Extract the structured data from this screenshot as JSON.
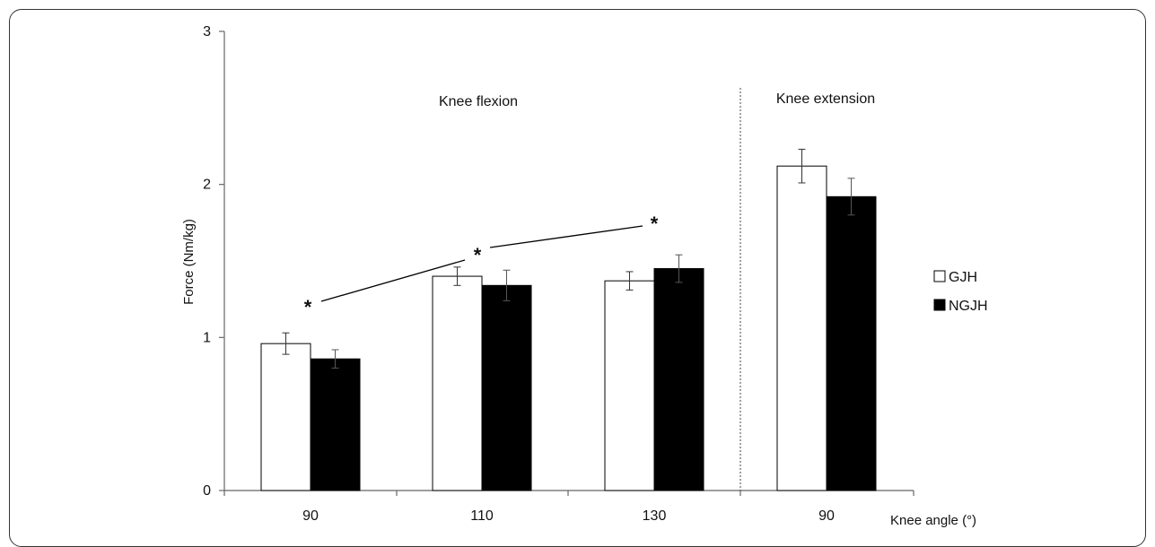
{
  "chart_data": {
    "type": "bar",
    "ylabel": "Force (Nm/kg)",
    "xlabel": "Knee angle (°)",
    "ylim": [
      0,
      3
    ],
    "yticks": [
      0,
      1,
      2,
      3
    ],
    "grid": false,
    "legend_position": "right",
    "categories": [
      "90",
      "110",
      "130",
      "90"
    ],
    "groups": [
      {
        "label": "Knee flexion",
        "categories": [
          "90",
          "110",
          "130"
        ]
      },
      {
        "label": "Knee extension",
        "categories": [
          "90"
        ]
      }
    ],
    "series": [
      {
        "name": "GJH",
        "fill": "#ffffff",
        "values": [
          0.96,
          1.4,
          1.37,
          2.12
        ],
        "errors": [
          0.07,
          0.06,
          0.06,
          0.11
        ]
      },
      {
        "name": "NGJH",
        "fill": "#000000",
        "values": [
          0.86,
          1.34,
          1.45,
          1.92
        ],
        "errors": [
          0.06,
          0.1,
          0.09,
          0.12
        ]
      }
    ],
    "annotations": [
      "*",
      "*",
      "*"
    ]
  }
}
